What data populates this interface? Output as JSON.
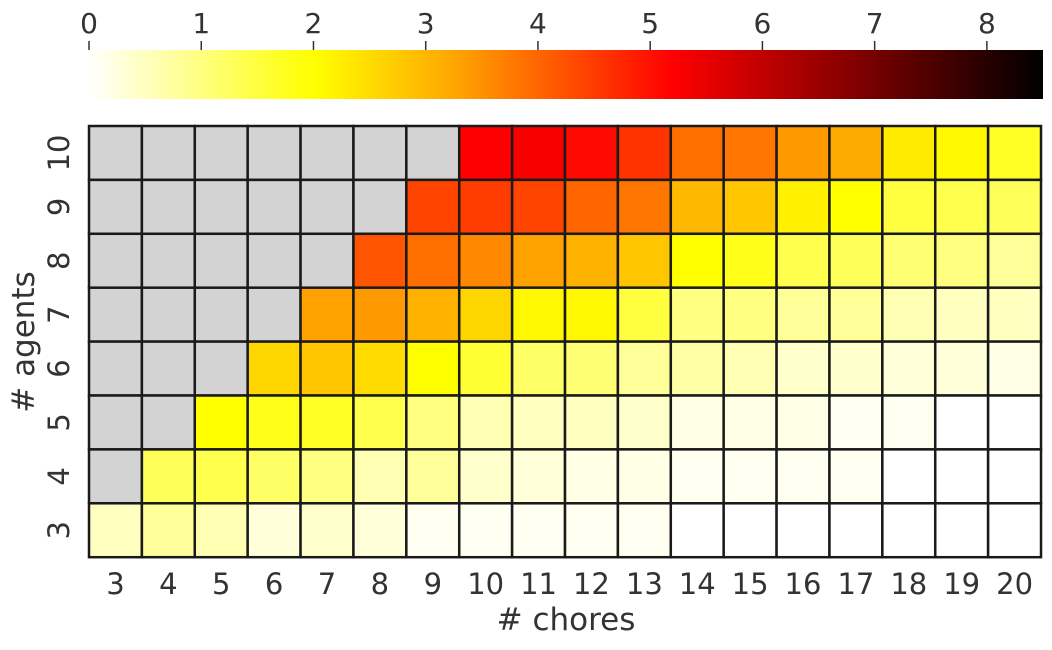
{
  "chart_data": {
    "type": "heatmap",
    "title": "",
    "xlabel": "# chores",
    "ylabel": "# agents",
    "x_categories": [
      "3",
      "4",
      "5",
      "6",
      "7",
      "8",
      "9",
      "10",
      "11",
      "12",
      "13",
      "14",
      "15",
      "16",
      "17",
      "18",
      "19",
      "20"
    ],
    "y_categories": [
      "10",
      "9",
      "8",
      "7",
      "6",
      "5",
      "4",
      "3"
    ],
    "values": [
      [
        null,
        null,
        null,
        null,
        null,
        null,
        null,
        5.2,
        5.3,
        5.1,
        4.6,
        3.9,
        3.8,
        3.4,
        3.2,
        2.3,
        2.1,
        1.7
      ],
      [
        null,
        null,
        null,
        null,
        null,
        null,
        4.4,
        4.5,
        4.4,
        4.0,
        3.8,
        3.0,
        2.8,
        2.2,
        2.0,
        1.5,
        1.4,
        1.3
      ],
      [
        null,
        null,
        null,
        null,
        null,
        4.2,
        3.9,
        3.6,
        3.3,
        3.1,
        2.8,
        2.0,
        1.8,
        1.4,
        1.3,
        1.1,
        1.0,
        0.8
      ],
      [
        null,
        null,
        null,
        null,
        3.3,
        3.4,
        3.1,
        2.6,
        2.1,
        2.1,
        1.5,
        1.0,
        1.0,
        0.8,
        0.8,
        0.6,
        0.5,
        0.5
      ],
      [
        null,
        null,
        null,
        2.6,
        2.8,
        2.5,
        2.0,
        1.6,
        1.2,
        1.1,
        0.8,
        0.7,
        0.6,
        0.4,
        0.4,
        0.3,
        0.3,
        0.2
      ],
      [
        null,
        null,
        2.0,
        1.8,
        1.7,
        1.4,
        1.0,
        0.6,
        0.5,
        0.5,
        0.4,
        0.2,
        0.2,
        0.2,
        0.1,
        0.1,
        0.0,
        0.0
      ],
      [
        null,
        1.3,
        1.4,
        1.2,
        1.0,
        0.6,
        0.8,
        0.4,
        0.3,
        0.2,
        0.2,
        0.1,
        0.1,
        0.1,
        0.1,
        0.0,
        0.0,
        0.0
      ],
      [
        0.5,
        0.8,
        0.6,
        0.3,
        0.4,
        0.3,
        0.1,
        0.1,
        0.1,
        0.1,
        0.1,
        0.0,
        0.0,
        0.0,
        0.0,
        0.0,
        0.0,
        0.0
      ]
    ],
    "missing_color": "#d3d3d3",
    "colorbar": {
      "placement": "top",
      "range": [
        0,
        8.5
      ],
      "ticks": [
        "0",
        "1",
        "2",
        "3",
        "4",
        "5",
        "6",
        "7",
        "8"
      ],
      "colormap": "hot_r",
      "stops": [
        {
          "value": 0.0,
          "color": "#ffffff"
        },
        {
          "value": 2.0,
          "color": "#ffff00"
        },
        {
          "value": 3.2,
          "color": "#ffaa00"
        },
        {
          "value": 5.2,
          "color": "#ff0000"
        },
        {
          "value": 8.5,
          "color": "#000000"
        }
      ]
    },
    "cell_border_color": "#1a1a1a"
  }
}
